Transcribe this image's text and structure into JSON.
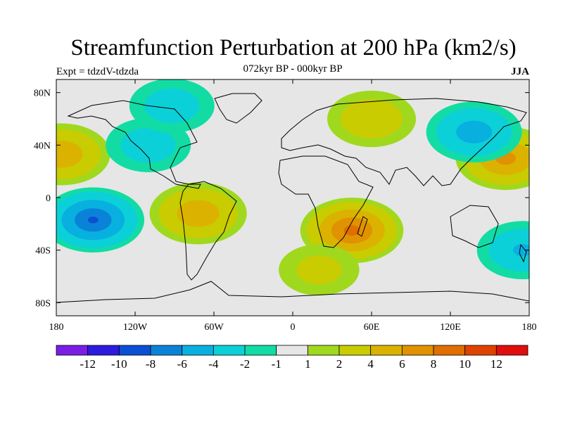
{
  "chart_data": {
    "type": "heatmap",
    "title": "Streamfunction Perturbation at 200 hPa (km2/s)",
    "subtitle": "072kyr BP - 000kyr BP",
    "left_string": "Expt = tdzdV-tdzda",
    "right_string": "JJA",
    "x_ticks": [
      "180",
      "120W",
      "60W",
      "0",
      "60E",
      "120E",
      "180"
    ],
    "x_tick_values": [
      -180,
      -120,
      -60,
      0,
      60,
      120,
      180
    ],
    "y_ticks": [
      "80N",
      "40N",
      "0",
      "40S",
      "80S"
    ],
    "y_tick_values": [
      80,
      40,
      0,
      -40,
      -80
    ],
    "xlim": [
      -180,
      180
    ],
    "ylim": [
      -90,
      90
    ],
    "contour_levels": [
      -14,
      -12,
      -10,
      -8,
      -6,
      -4,
      -2,
      -1,
      1,
      2,
      4,
      6,
      8,
      10,
      12,
      14
    ],
    "colorbar_labels": [
      "-12",
      "-10",
      "-8",
      "-6",
      "-4",
      "-2",
      "-1",
      "1",
      "2",
      "4",
      "6",
      "8",
      "10",
      "12"
    ],
    "colors": [
      "#7a1ee6",
      "#2d1be0",
      "#0a4fd4",
      "#0a82d8",
      "#08b0e0",
      "#0cd0d8",
      "#12dca4",
      "#e6e6e6",
      "#a0d81e",
      "#c8cc00",
      "#dcb200",
      "#e09200",
      "#e06e00",
      "#e04200",
      "#e00e0e"
    ],
    "features": [
      {
        "region": "southern Africa / Madagascar",
        "lon": 45,
        "lat": -25,
        "peak": 8.5
      },
      {
        "region": "northwest Pacific off Japan",
        "lon": 162,
        "lat": 30,
        "peak": 6.5
      },
      {
        "region": "eastern Pacific at dateline",
        "lon": -176,
        "lat": 33,
        "peak": 5.5
      },
      {
        "region": "central South America",
        "lon": -72,
        "lat": -12,
        "peak": 5.5
      },
      {
        "region": "central Pacific south",
        "lon": -152,
        "lat": -17,
        "peak": -8
      },
      {
        "region": "northeast Asia",
        "lon": 138,
        "lat": 50,
        "peak": -5
      },
      {
        "region": "North America",
        "lon": -110,
        "lat": 40,
        "peak": -3
      },
      {
        "region": "Arctic Canada",
        "lon": -92,
        "lat": 70,
        "peak": -3
      },
      {
        "region": "far southwest Pacific",
        "lon": 175,
        "lat": -40,
        "peak": -4
      },
      {
        "region": "central Asia",
        "lon": 60,
        "lat": 60,
        "peak": 3.5
      },
      {
        "region": "South Atlantic / Indian Ocean",
        "lon": 20,
        "lat": -55,
        "peak": 2.5
      }
    ]
  }
}
